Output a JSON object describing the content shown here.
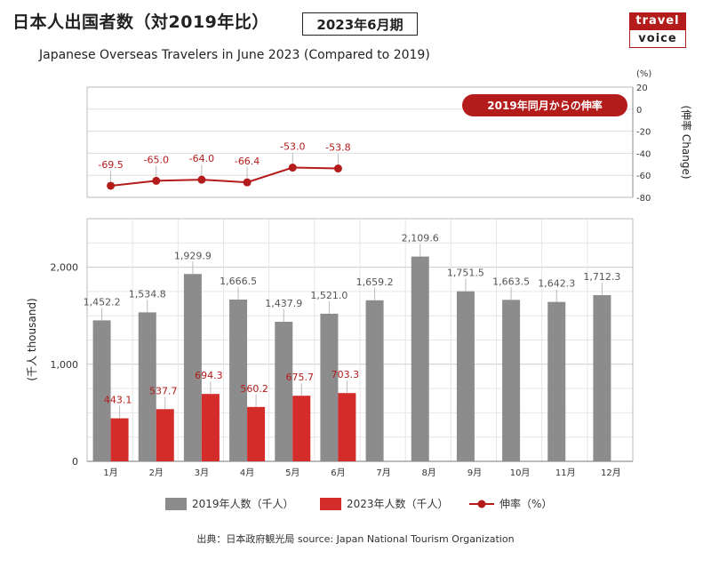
{
  "header": {
    "title_jp": "日本人出国者数（対2019年比）",
    "period": "2023年6月期",
    "title_en": "Japanese Overseas Travelers in June 2023 (Compared to 2019)"
  },
  "logo": {
    "line1": "travel",
    "line2": "voice"
  },
  "source": "出典：日本政府観光局  source: Japan National Tourism Organization",
  "colors": {
    "bar2019": "#8c8c8c",
    "bar2023": "#d42b2b",
    "line": "#b41b1b",
    "badge": "#b41b1b"
  },
  "chart_data": {
    "type": "bar",
    "categories": [
      "1月",
      "2月",
      "3月",
      "4月",
      "5月",
      "6月",
      "7月",
      "8月",
      "9月",
      "10月",
      "11月",
      "12月"
    ],
    "series": [
      {
        "name": "2019年人数（千人）",
        "values": [
          1452.2,
          1534.8,
          1929.9,
          1666.5,
          1437.9,
          1521.0,
          1659.2,
          2109.6,
          1751.5,
          1663.5,
          1642.3,
          1712.3
        ],
        "labels": [
          "1,452.2",
          "1,534.8",
          "1,929.9",
          "1,666.5",
          "1,437.9",
          "1,521.0",
          "1,659.2",
          "2,109.6",
          "1,751.5",
          "1,663.5",
          "1,642.3",
          "1,712.3"
        ]
      },
      {
        "name": "2023年人数（千人）",
        "values": [
          443.1,
          537.7,
          694.3,
          560.2,
          675.7,
          703.3,
          null,
          null,
          null,
          null,
          null,
          null
        ],
        "labels": [
          "443.1",
          "537.7",
          "694.3",
          "560.2",
          "675.7",
          "703.3"
        ]
      }
    ],
    "ylabel": "(千人 thousand)",
    "ylim": [
      0,
      2500
    ],
    "yticks": [
      0,
      1000,
      2000
    ],
    "ytick_labels": [
      "0",
      "1,000",
      "2,000"
    ],
    "line_chart": {
      "type": "line",
      "name": "伸率（%）",
      "values": [
        -69.5,
        -65.0,
        -64.0,
        -66.4,
        -53.0,
        -53.8
      ],
      "labels": [
        "-69.5",
        "-65.0",
        "-64.0",
        "-66.4",
        "-53.0",
        "-53.8"
      ],
      "ylim": [
        -80,
        20
      ],
      "yticks": [
        20,
        0,
        -20,
        -40,
        -60,
        -80
      ],
      "unit": "(%)",
      "ylabel": "(伸率 Change)",
      "badge": "2019年同月からの伸率"
    },
    "legend": [
      "2019年人数（千人）",
      "2023年人数（千人）",
      "伸率（%）"
    ],
    "legend_position": "bottom",
    "grid": true
  }
}
